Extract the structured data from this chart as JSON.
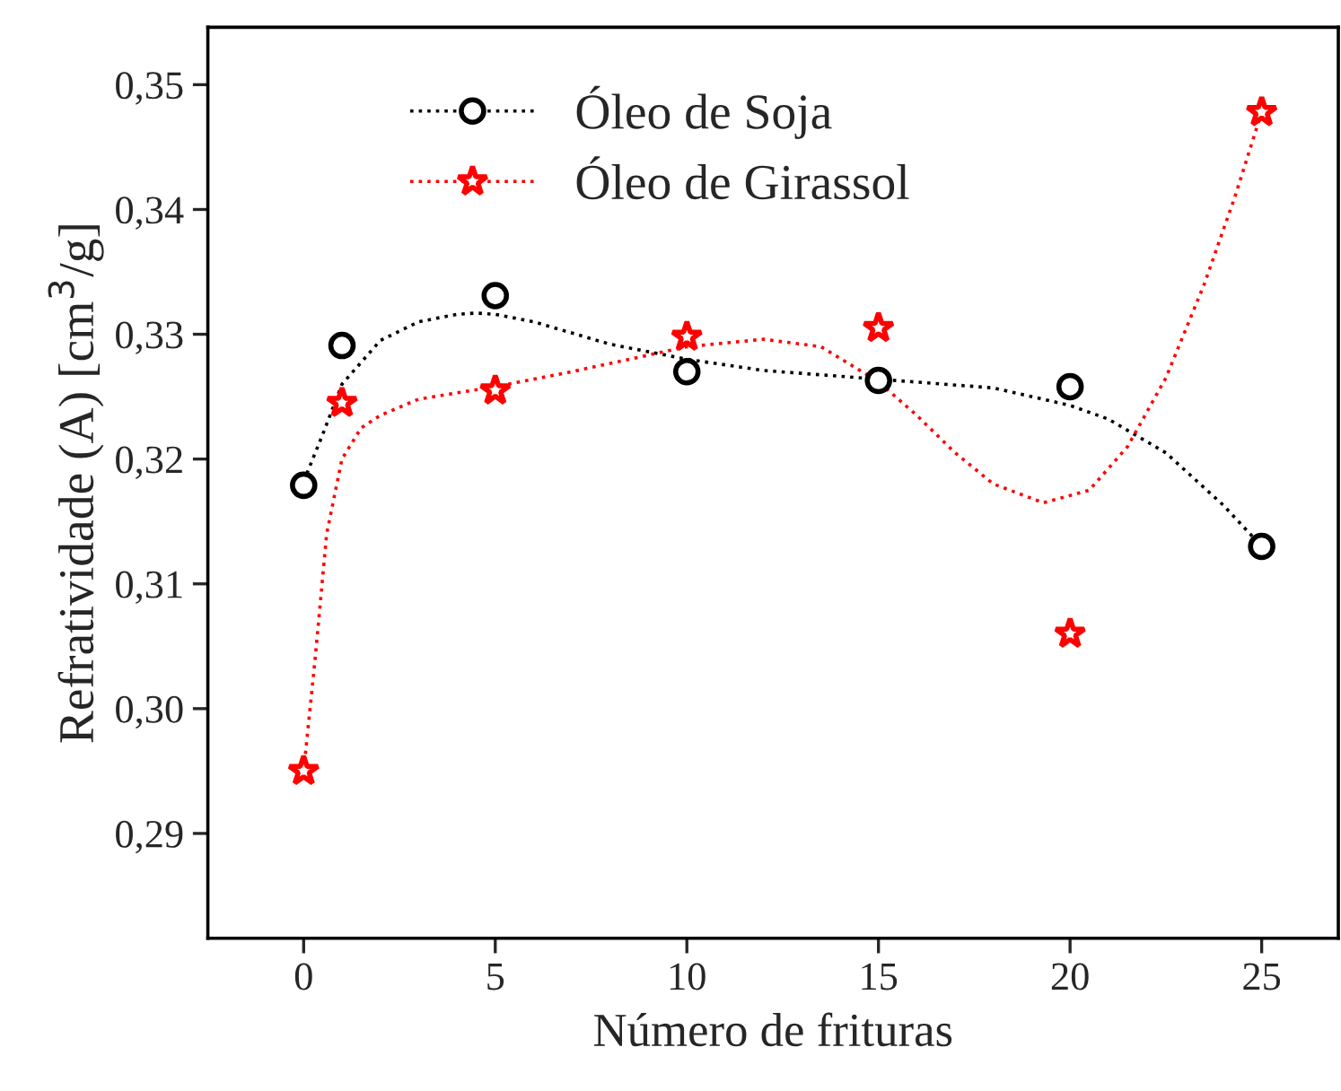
{
  "chart_data": {
    "type": "scatter",
    "xlabel": "Número de frituras",
    "ylabel": "Refratividade (A) [cm$^{3}$/g]",
    "xlim": [
      -2.5,
      27
    ],
    "xticks": [
      0,
      5,
      10,
      15,
      20,
      25
    ],
    "ylim": [
      0.2816,
      0.3546
    ],
    "yticks": [
      {
        "value": 0.29,
        "label": "0,29"
      },
      {
        "value": 0.3,
        "label": "0,30"
      },
      {
        "value": 0.31,
        "label": "0,31"
      },
      {
        "value": 0.32,
        "label": "0,32"
      },
      {
        "value": 0.33,
        "label": "0,33"
      },
      {
        "value": 0.34,
        "label": "0,34"
      },
      {
        "value": 0.35,
        "label": "0,35"
      }
    ],
    "grid": false,
    "legend": "top",
    "series": [
      {
        "name": "Óleo de Soja",
        "marker": "circle",
        "color": "#000000",
        "x": [
          0,
          1,
          5,
          10,
          15,
          20,
          25
        ],
        "values": [
          0.3179,
          0.3291,
          0.3331,
          0.327,
          0.3263,
          0.3258,
          0.313
        ]
      },
      {
        "type": "line",
        "line_style": "dotted",
        "marker": "none",
        "color": "#000000",
        "x": [
          0,
          0.5,
          1,
          2,
          3,
          4,
          4.5,
          5,
          6,
          8,
          10,
          12,
          15,
          18,
          20,
          21,
          22.5,
          24,
          25
        ],
        "values": [
          0.3182,
          0.322,
          0.326,
          0.3295,
          0.331,
          0.3316,
          0.3317,
          0.3316,
          0.331,
          0.3292,
          0.328,
          0.3271,
          0.3264,
          0.3257,
          0.3243,
          0.3232,
          0.3205,
          0.3163,
          0.313
        ]
      },
      {
        "name": "Óleo de Girassol",
        "marker": "star",
        "color": "#ff0000",
        "x": [
          0,
          1,
          5,
          10,
          15,
          20,
          25
        ],
        "values": [
          0.295,
          0.3245,
          0.3255,
          0.3298,
          0.3305,
          0.306,
          0.3478
        ]
      },
      {
        "type": "line",
        "line_style": "dotted",
        "marker": "none",
        "color": "#ff0000",
        "x": [
          0,
          0.3,
          0.6,
          1,
          1.5,
          2,
          3,
          5,
          7,
          10,
          12,
          13.5,
          15,
          16,
          17,
          18,
          19.3,
          20.5,
          21.5,
          22.5,
          23.5,
          24.3,
          25
        ],
        "values": [
          0.295,
          0.304,
          0.314,
          0.32,
          0.3225,
          0.3235,
          0.3248,
          0.3258,
          0.327,
          0.329,
          0.3296,
          0.329,
          0.3262,
          0.3235,
          0.3205,
          0.318,
          0.3165,
          0.3175,
          0.321,
          0.3265,
          0.334,
          0.341,
          0.3478
        ]
      }
    ]
  }
}
